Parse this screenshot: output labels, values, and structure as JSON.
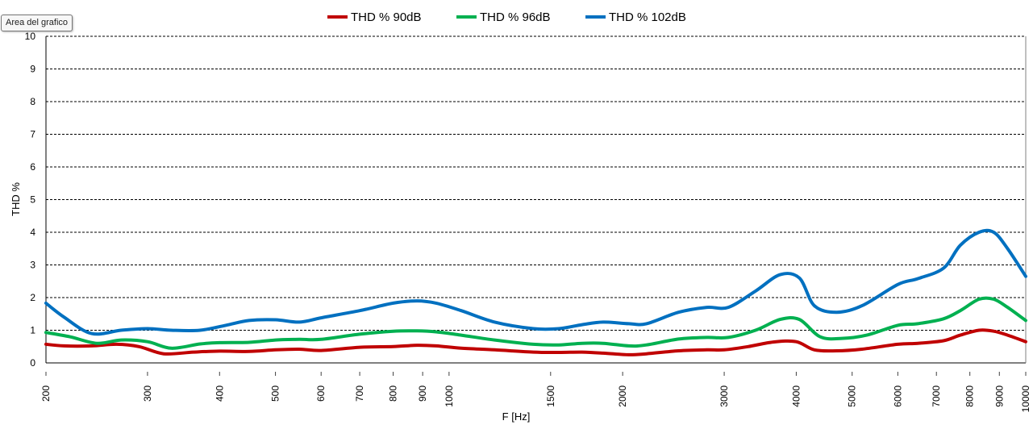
{
  "tooltip": "Area del grafico",
  "colors": {
    "thd90": "#c00000",
    "thd96": "#00b050",
    "thd102": "#0070c0",
    "grid": "#000000",
    "axis": "#000000"
  },
  "chart_data": {
    "type": "line",
    "title": "",
    "xlabel": "F [Hz]",
    "ylabel": "THD %",
    "x_scale": "log",
    "xlim": [
      200,
      10000
    ],
    "ylim": [
      0,
      10
    ],
    "y_ticks": [
      "0",
      "1",
      "2",
      "3",
      "4",
      "5",
      "6",
      "7",
      "8",
      "9",
      "10"
    ],
    "x_ticks": [
      "200",
      "300",
      "400",
      "500",
      "600",
      "700",
      "800",
      "900",
      "1000",
      "1500",
      "2000",
      "3000",
      "4000",
      "5000",
      "6000",
      "7000",
      "8000",
      "9000",
      "10000"
    ],
    "grid": "horizontal, dashed",
    "legend": "top-center",
    "series": [
      {
        "name": "THD % 90dB",
        "color": "#c00000",
        "points": [
          [
            200,
            0.57
          ],
          [
            215,
            0.52
          ],
          [
            240,
            0.52
          ],
          [
            265,
            0.57
          ],
          [
            290,
            0.5
          ],
          [
            320,
            0.28
          ],
          [
            360,
            0.33
          ],
          [
            400,
            0.36
          ],
          [
            450,
            0.35
          ],
          [
            500,
            0.4
          ],
          [
            550,
            0.42
          ],
          [
            600,
            0.38
          ],
          [
            700,
            0.48
          ],
          [
            800,
            0.5
          ],
          [
            880,
            0.54
          ],
          [
            950,
            0.52
          ],
          [
            1050,
            0.45
          ],
          [
            1200,
            0.4
          ],
          [
            1400,
            0.33
          ],
          [
            1550,
            0.32
          ],
          [
            1700,
            0.33
          ],
          [
            1850,
            0.3
          ],
          [
            2050,
            0.25
          ],
          [
            2200,
            0.28
          ],
          [
            2500,
            0.37
          ],
          [
            2800,
            0.4
          ],
          [
            3000,
            0.4
          ],
          [
            3300,
            0.5
          ],
          [
            3650,
            0.64
          ],
          [
            4000,
            0.65
          ],
          [
            4300,
            0.4
          ],
          [
            4700,
            0.37
          ],
          [
            5200,
            0.42
          ],
          [
            6000,
            0.57
          ],
          [
            6500,
            0.6
          ],
          [
            7200,
            0.68
          ],
          [
            7700,
            0.85
          ],
          [
            8300,
            1.0
          ],
          [
            8800,
            0.97
          ],
          [
            9300,
            0.85
          ],
          [
            10000,
            0.65
          ]
        ]
      },
      {
        "name": "THD % 96dB",
        "color": "#00b050",
        "points": [
          [
            200,
            0.93
          ],
          [
            220,
            0.8
          ],
          [
            245,
            0.6
          ],
          [
            270,
            0.7
          ],
          [
            300,
            0.65
          ],
          [
            330,
            0.45
          ],
          [
            370,
            0.58
          ],
          [
            400,
            0.62
          ],
          [
            450,
            0.63
          ],
          [
            500,
            0.7
          ],
          [
            550,
            0.72
          ],
          [
            600,
            0.72
          ],
          [
            700,
            0.88
          ],
          [
            800,
            0.97
          ],
          [
            880,
            0.98
          ],
          [
            950,
            0.95
          ],
          [
            1050,
            0.85
          ],
          [
            1200,
            0.7
          ],
          [
            1400,
            0.57
          ],
          [
            1550,
            0.55
          ],
          [
            1700,
            0.6
          ],
          [
            1850,
            0.6
          ],
          [
            2050,
            0.52
          ],
          [
            2200,
            0.55
          ],
          [
            2500,
            0.73
          ],
          [
            2800,
            0.78
          ],
          [
            3050,
            0.78
          ],
          [
            3400,
            1.0
          ],
          [
            3750,
            1.33
          ],
          [
            4050,
            1.33
          ],
          [
            4400,
            0.8
          ],
          [
            4800,
            0.75
          ],
          [
            5300,
            0.85
          ],
          [
            6000,
            1.15
          ],
          [
            6500,
            1.2
          ],
          [
            7200,
            1.35
          ],
          [
            7700,
            1.6
          ],
          [
            8300,
            1.95
          ],
          [
            8800,
            1.95
          ],
          [
            9300,
            1.7
          ],
          [
            10000,
            1.3
          ]
        ]
      },
      {
        "name": "THD % 102dB",
        "color": "#0070c0",
        "points": [
          [
            200,
            1.83
          ],
          [
            215,
            1.4
          ],
          [
            240,
            0.9
          ],
          [
            270,
            1.0
          ],
          [
            300,
            1.05
          ],
          [
            330,
            1.0
          ],
          [
            370,
            1.0
          ],
          [
            410,
            1.15
          ],
          [
            450,
            1.3
          ],
          [
            500,
            1.32
          ],
          [
            550,
            1.25
          ],
          [
            600,
            1.38
          ],
          [
            700,
            1.6
          ],
          [
            800,
            1.83
          ],
          [
            880,
            1.9
          ],
          [
            950,
            1.83
          ],
          [
            1050,
            1.6
          ],
          [
            1200,
            1.25
          ],
          [
            1400,
            1.05
          ],
          [
            1550,
            1.05
          ],
          [
            1700,
            1.17
          ],
          [
            1850,
            1.25
          ],
          [
            2050,
            1.2
          ],
          [
            2200,
            1.2
          ],
          [
            2500,
            1.55
          ],
          [
            2800,
            1.7
          ],
          [
            3050,
            1.7
          ],
          [
            3400,
            2.2
          ],
          [
            3750,
            2.7
          ],
          [
            4050,
            2.6
          ],
          [
            4300,
            1.75
          ],
          [
            4700,
            1.55
          ],
          [
            5200,
            1.75
          ],
          [
            6000,
            2.4
          ],
          [
            6500,
            2.58
          ],
          [
            7200,
            2.9
          ],
          [
            7700,
            3.6
          ],
          [
            8300,
            4.0
          ],
          [
            8800,
            4.0
          ],
          [
            9300,
            3.5
          ],
          [
            10000,
            2.65
          ]
        ]
      }
    ]
  }
}
